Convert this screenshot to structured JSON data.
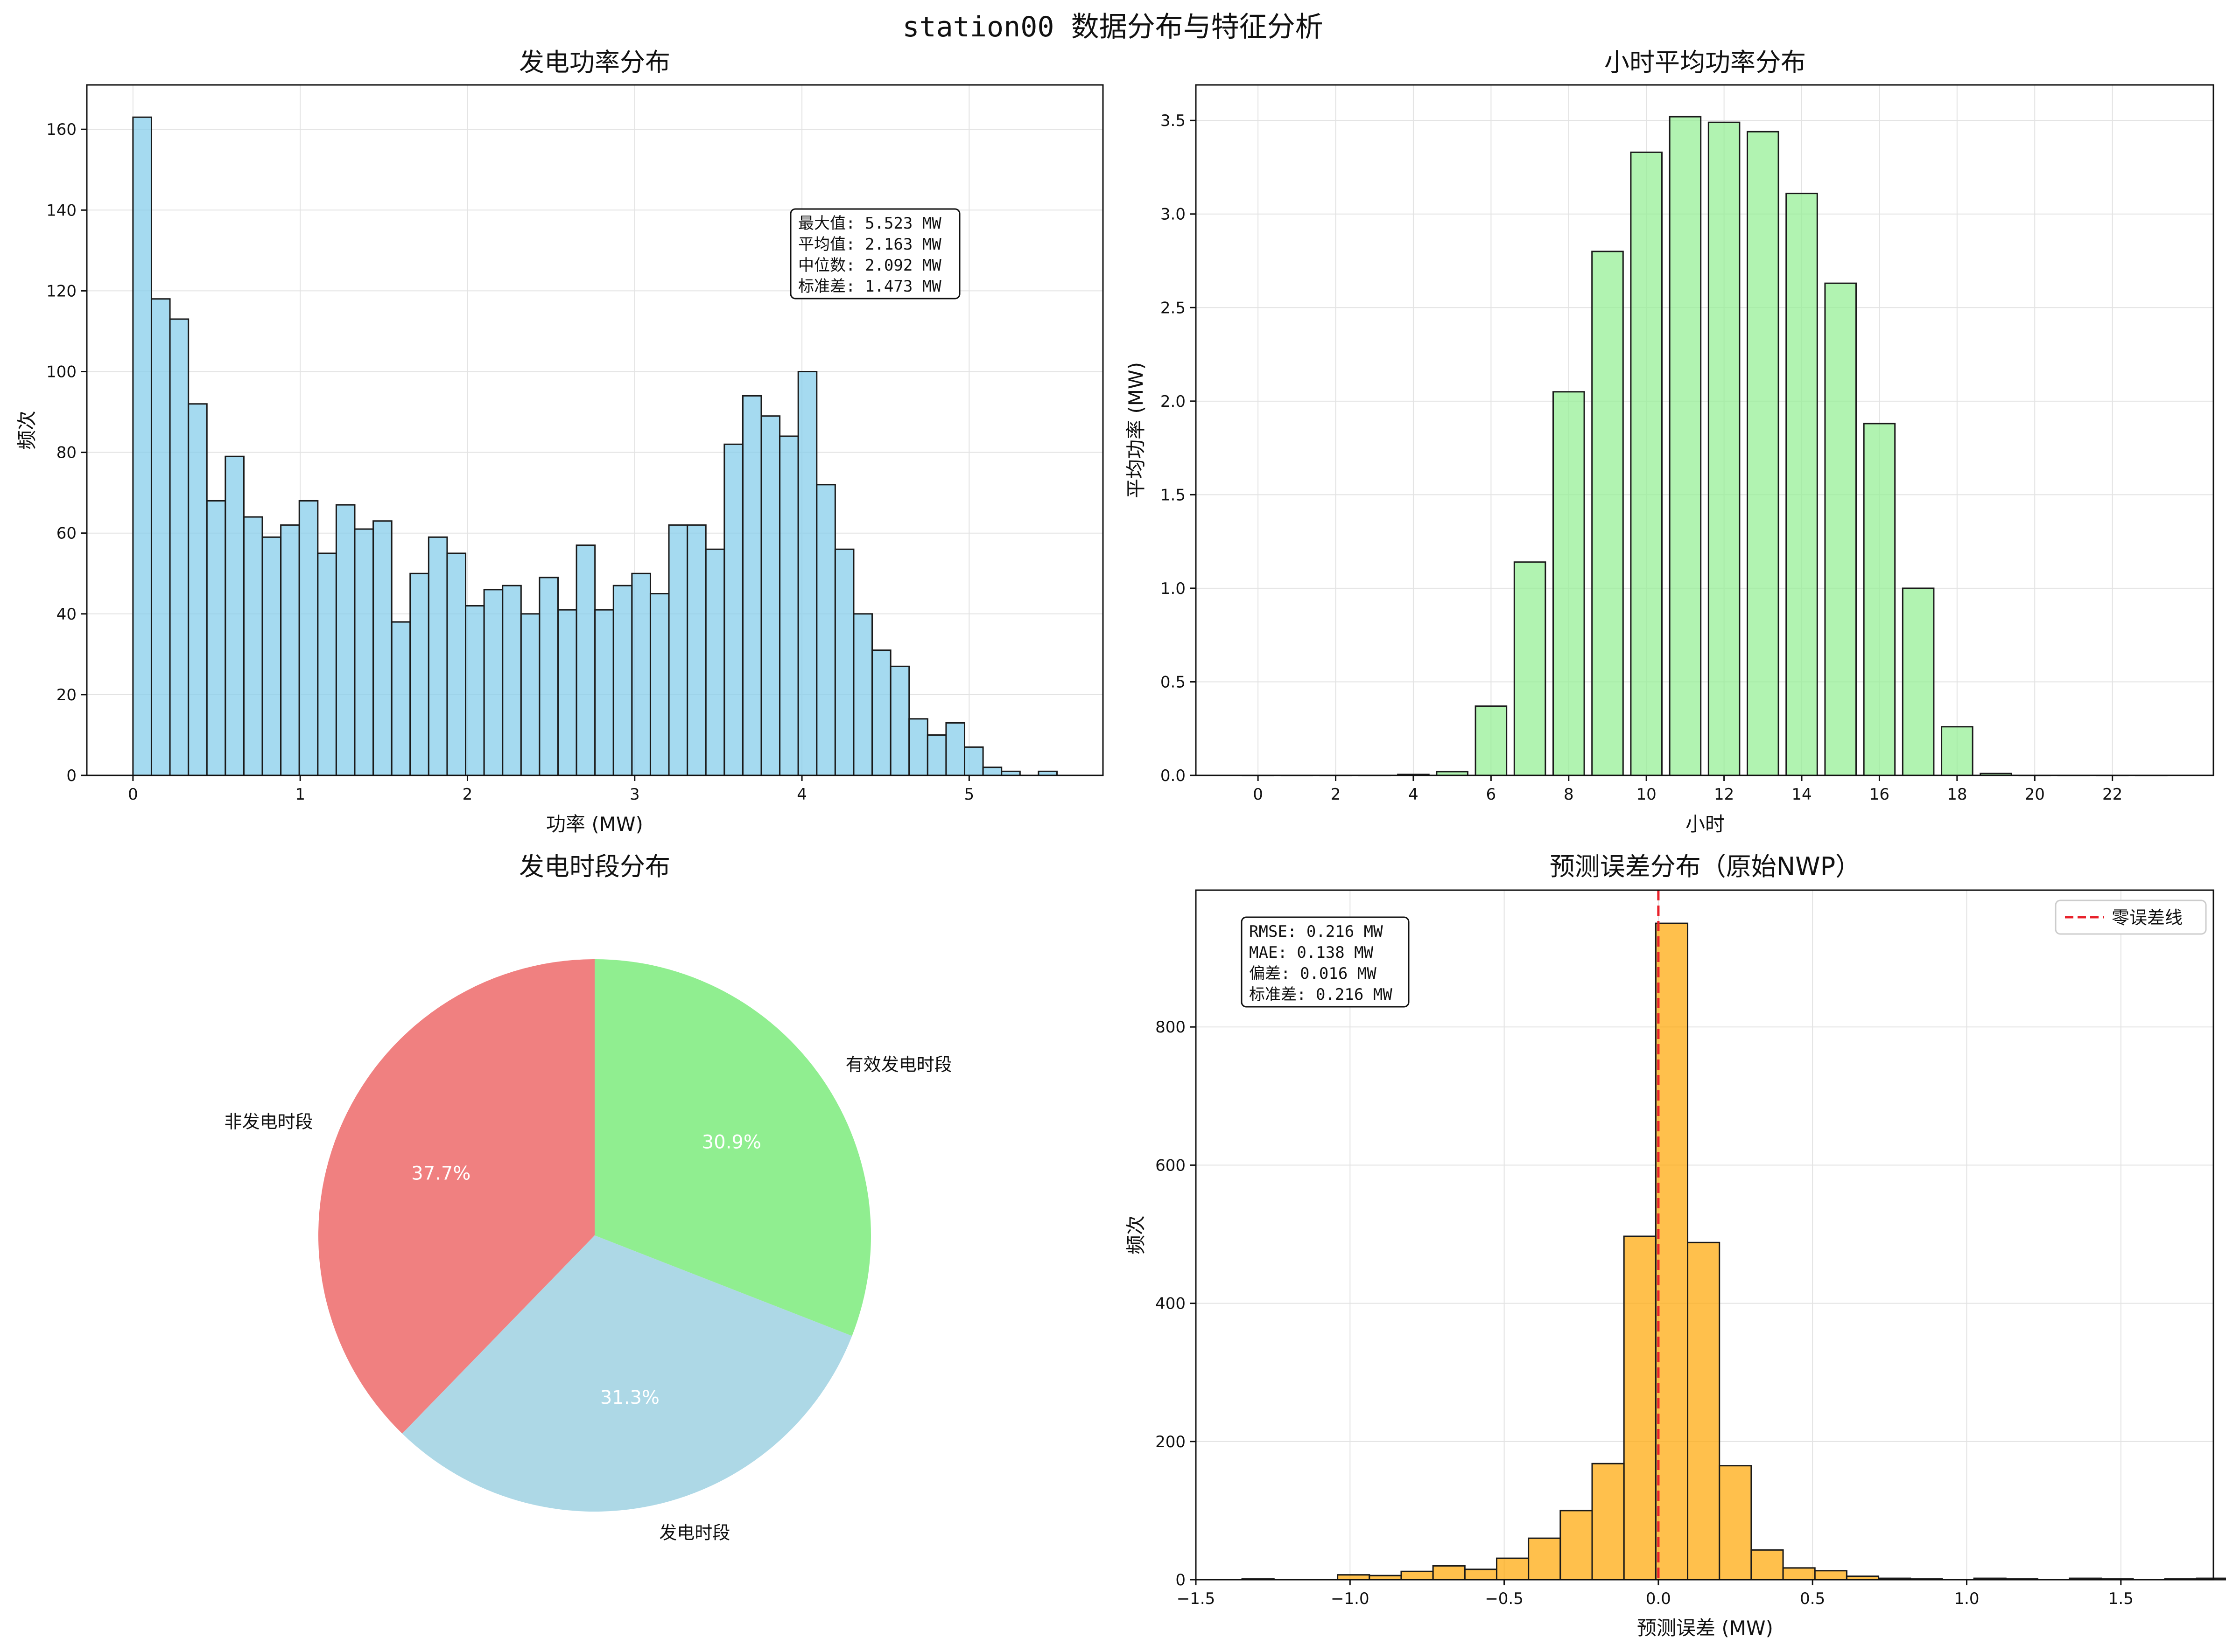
{
  "suptitle": "station00 数据分布与特征分析",
  "colors": {
    "hist_fill": "#87ceeb",
    "bar_fill": "#90ee90",
    "err_fill": "#ffa500",
    "edge": "#1a1a1a",
    "zero_line": "#e8202a",
    "pie_non": "#f08080",
    "pie_gen": "#add8e6",
    "pie_eff": "#90ee90",
    "grid": "#e3e3e3"
  },
  "chart_data": [
    {
      "type": "bar",
      "subtype": "histogram",
      "title": "发电功率分布",
      "xlabel": "功率 (MW)",
      "ylabel": "频次",
      "xlim": [
        -0.276,
        5.8
      ],
      "ylim": [
        0,
        171
      ],
      "xticks": [
        0,
        1,
        2,
        3,
        4,
        5
      ],
      "yticks": [
        0,
        20,
        40,
        60,
        80,
        100,
        120,
        140,
        160
      ],
      "grid": true,
      "bin_start": 0,
      "bin_width": 0.1105,
      "values": [
        163,
        118,
        113,
        92,
        68,
        79,
        64,
        59,
        62,
        68,
        55,
        67,
        61,
        63,
        38,
        50,
        59,
        55,
        42,
        46,
        47,
        40,
        49,
        41,
        57,
        41,
        47,
        50,
        45,
        62,
        62,
        56,
        82,
        94,
        89,
        84,
        100,
        72,
        56,
        40,
        31,
        27,
        14,
        10,
        13,
        7,
        2,
        1,
        0,
        1
      ],
      "stats_box": [
        "最大值: 5.523 MW",
        "平均值: 2.163 MW",
        "中位数: 2.092 MW",
        "标准差: 1.473 MW"
      ]
    },
    {
      "type": "bar",
      "title": "小时平均功率分布",
      "xlabel": "小时",
      "ylabel": "平均功率 (MW)",
      "xlim": [
        -1.6,
        24.6
      ],
      "ylim": [
        0,
        3.69
      ],
      "xticks": [
        0,
        2,
        4,
        6,
        8,
        10,
        12,
        14,
        16,
        18,
        20,
        22
      ],
      "yticks": [
        0.0,
        0.5,
        1.0,
        1.5,
        2.0,
        2.5,
        3.0,
        3.5
      ],
      "grid": true,
      "categories": [
        0,
        1,
        2,
        3,
        4,
        5,
        6,
        7,
        8,
        9,
        10,
        11,
        12,
        13,
        14,
        15,
        16,
        17,
        18,
        19,
        20,
        21,
        22,
        23
      ],
      "values": [
        0,
        0,
        0,
        0,
        0.005,
        0.02,
        0.37,
        1.14,
        2.05,
        2.8,
        3.33,
        3.52,
        3.49,
        3.44,
        3.11,
        2.63,
        1.88,
        1.0,
        0.26,
        0.01,
        0,
        0,
        0,
        0
      ]
    },
    {
      "type": "pie",
      "title": "发电时段分布",
      "labels": [
        "非发电时段",
        "发电时段",
        "有效发电时段"
      ],
      "values": [
        37.7,
        31.3,
        30.9
      ],
      "pct_labels": [
        "37.7%",
        "31.3%",
        "30.9%"
      ],
      "start_angle_deg": 90,
      "direction": "counterclockwise"
    },
    {
      "type": "bar",
      "subtype": "histogram",
      "title": "预测误差分布（原始NWP）",
      "xlabel": "预测误差 (MW)",
      "ylabel": "频次",
      "xlim": [
        -1.5,
        1.8
      ],
      "ylim": [
        0,
        998
      ],
      "xticks": [
        -1.5,
        -1.0,
        -0.5,
        0.0,
        0.5,
        1.0,
        1.5
      ],
      "xtick_labels": [
        "−1.5",
        "−1.0",
        "−0.5",
        "0.0",
        "0.5",
        "1.0",
        "1.5"
      ],
      "yticks": [
        0,
        200,
        400,
        600,
        800
      ],
      "grid": true,
      "bin_start": -1.35,
      "bin_width": 0.1032,
      "values": [
        1,
        0,
        0,
        7,
        6,
        12,
        20,
        15,
        31,
        60,
        100,
        168,
        497,
        950,
        488,
        165,
        43,
        17,
        13,
        5,
        2,
        1,
        0,
        2,
        1,
        0,
        2,
        1,
        0,
        1,
        2
      ],
      "stats_box": [
        "RMSE: 0.216 MW",
        "MAE: 0.138 MW",
        "偏差: 0.016 MW",
        "标准差: 0.216 MW"
      ],
      "reference_line": {
        "x": 0.0,
        "label": "零误差线",
        "style": "dashed"
      },
      "legend": "top-right"
    }
  ]
}
